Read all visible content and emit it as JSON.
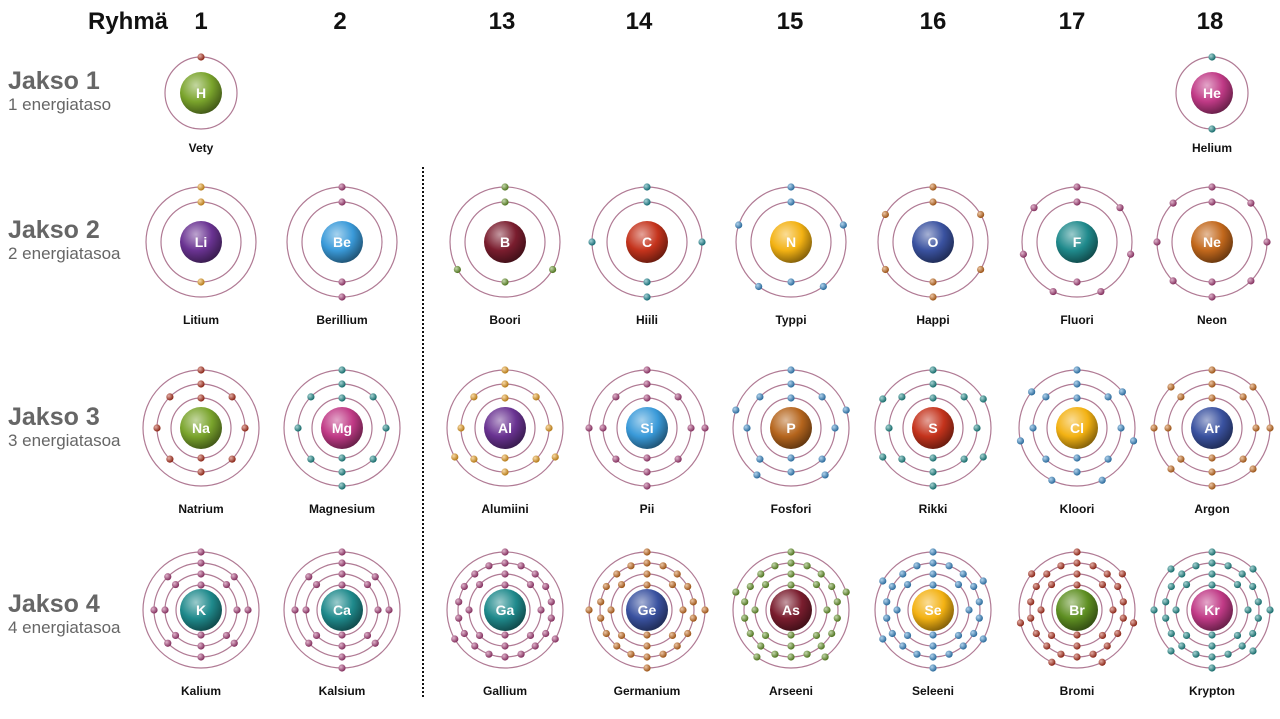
{
  "header": {
    "title": "Ryhmä"
  },
  "groups": [
    "1",
    "2",
    "13",
    "14",
    "15",
    "16",
    "17",
    "18"
  ],
  "periods": [
    {
      "name": "Jakso 1",
      "levels": "1 energiataso"
    },
    {
      "name": "Jakso 2",
      "levels": "2 energiatasoa"
    },
    {
      "name": "Jakso 3",
      "levels": "3 energiatasoa"
    },
    {
      "name": "Jakso 4",
      "levels": "4 energiatasoa"
    }
  ],
  "elements": [
    {
      "symbol": "H",
      "name": "Vety",
      "period": 1,
      "col": 0,
      "shells": [
        1
      ],
      "core": "#7aa42c",
      "electron": "#b8321f"
    },
    {
      "symbol": "He",
      "name": "Helium",
      "period": 1,
      "col": 7,
      "shells": [
        2
      ],
      "core": "#c03a86",
      "electron": "#1f8f8f"
    },
    {
      "symbol": "Li",
      "name": "Litium",
      "period": 2,
      "col": 0,
      "shells": [
        2,
        1
      ],
      "core": "#6a3392",
      "electron": "#f1a320"
    },
    {
      "symbol": "Be",
      "name": "Berillium",
      "period": 2,
      "col": 1,
      "shells": [
        2,
        2
      ],
      "core": "#3a9ad9",
      "electron": "#b0417e"
    },
    {
      "symbol": "B",
      "name": "Boori",
      "period": 2,
      "col": 2,
      "shells": [
        2,
        3
      ],
      "core": "#7a1d2e",
      "electron": "#6a9a2a"
    },
    {
      "symbol": "C",
      "name": "Hiili",
      "period": 2,
      "col": 3,
      "shells": [
        2,
        4
      ],
      "core": "#c4331c",
      "electron": "#1f8f9a"
    },
    {
      "symbol": "N",
      "name": "Typpi",
      "period": 2,
      "col": 4,
      "shells": [
        2,
        5
      ],
      "core": "#f3b213",
      "electron": "#3a8fd0"
    },
    {
      "symbol": "O",
      "name": "Happi",
      "period": 2,
      "col": 5,
      "shells": [
        2,
        6
      ],
      "core": "#3a52a0",
      "electron": "#d0701e"
    },
    {
      "symbol": "F",
      "name": "Fluori",
      "period": 2,
      "col": 6,
      "shells": [
        2,
        7
      ],
      "core": "#1f8a8c",
      "electron": "#b0417e"
    },
    {
      "symbol": "Ne",
      "name": "Neon",
      "period": 2,
      "col": 7,
      "shells": [
        2,
        8
      ],
      "core": "#c2681c",
      "electron": "#b0417e"
    },
    {
      "symbol": "Na",
      "name": "Natrium",
      "period": 3,
      "col": 0,
      "shells": [
        2,
        8,
        1
      ],
      "core": "#7aa42c",
      "electron": "#b8321f"
    },
    {
      "symbol": "Mg",
      "name": "Magnesium",
      "period": 3,
      "col": 1,
      "shells": [
        2,
        8,
        2
      ],
      "core": "#c03a86",
      "electron": "#1f8f8f"
    },
    {
      "symbol": "Al",
      "name": "Alumiini",
      "period": 3,
      "col": 2,
      "shells": [
        2,
        8,
        3
      ],
      "core": "#6a3392",
      "electron": "#f1a320"
    },
    {
      "symbol": "Si",
      "name": "Pii",
      "period": 3,
      "col": 3,
      "shells": [
        2,
        8,
        4
      ],
      "core": "#3a9ad9",
      "electron": "#b0417e"
    },
    {
      "symbol": "P",
      "name": "Fosfori",
      "period": 3,
      "col": 4,
      "shells": [
        2,
        8,
        5
      ],
      "core": "#b5651d",
      "electron": "#3a8fd0"
    },
    {
      "symbol": "S",
      "name": "Rikki",
      "period": 3,
      "col": 5,
      "shells": [
        2,
        8,
        6
      ],
      "core": "#c4331c",
      "electron": "#1f8f8f"
    },
    {
      "symbol": "Cl",
      "name": "Kloori",
      "period": 3,
      "col": 6,
      "shells": [
        2,
        8,
        7
      ],
      "core": "#f3b213",
      "electron": "#3a8fd0"
    },
    {
      "symbol": "Ar",
      "name": "Argon",
      "period": 3,
      "col": 7,
      "shells": [
        2,
        8,
        8
      ],
      "core": "#3a52a0",
      "electron": "#d0701e"
    },
    {
      "symbol": "K",
      "name": "Kalium",
      "period": 4,
      "col": 0,
      "shells": [
        2,
        8,
        8,
        1
      ],
      "core": "#1f8a8c",
      "electron": "#b0417e"
    },
    {
      "symbol": "Ca",
      "name": "Kalsium",
      "period": 4,
      "col": 1,
      "shells": [
        2,
        8,
        8,
        2
      ],
      "core": "#1f8a8c",
      "electron": "#b0417e"
    },
    {
      "symbol": "Ga",
      "name": "Gallium",
      "period": 4,
      "col": 2,
      "shells": [
        2,
        8,
        18,
        3
      ],
      "core": "#1f8a8c",
      "electron": "#b0417e"
    },
    {
      "symbol": "Ge",
      "name": "Germanium",
      "period": 4,
      "col": 3,
      "shells": [
        2,
        8,
        18,
        4
      ],
      "core": "#3a52a0",
      "electron": "#d0701e"
    },
    {
      "symbol": "As",
      "name": "Arseeni",
      "period": 4,
      "col": 4,
      "shells": [
        2,
        8,
        18,
        5
      ],
      "core": "#7a1d2e",
      "electron": "#6a9a2a"
    },
    {
      "symbol": "Se",
      "name": "Seleeni",
      "period": 4,
      "col": 5,
      "shells": [
        2,
        8,
        18,
        6
      ],
      "core": "#f3b213",
      "electron": "#3a8fd0"
    },
    {
      "symbol": "Br",
      "name": "Bromi",
      "period": 4,
      "col": 6,
      "shells": [
        2,
        8,
        18,
        7
      ],
      "core": "#5e8f22",
      "electron": "#b8321f"
    },
    {
      "symbol": "Kr",
      "name": "Krypton",
      "period": 4,
      "col": 7,
      "shells": [
        2,
        8,
        18,
        8
      ],
      "core": "#c03a86",
      "electron": "#1f8f8f"
    }
  ],
  "colors": {
    "orbit": "#b07a94",
    "divider": "#111111"
  }
}
